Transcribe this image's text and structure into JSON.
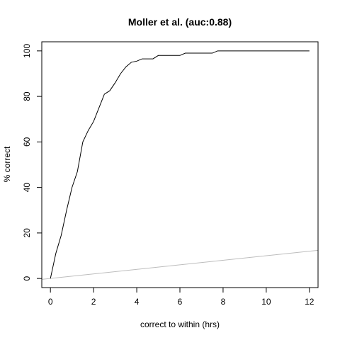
{
  "chart_data": {
    "type": "line",
    "title": "Moller et al. (auc:0.88)",
    "xlabel": "correct to within (hrs)",
    "ylabel": "% correct",
    "xlim": [
      -0.4,
      12.4
    ],
    "ylim": [
      -4,
      104
    ],
    "xticks": [
      0,
      2,
      4,
      6,
      8,
      10,
      12
    ],
    "yticks": [
      0,
      20,
      40,
      60,
      80,
      100
    ],
    "grid": false,
    "legend": "none",
    "series": [
      {
        "x": [
          0.0,
          0.25,
          0.5,
          0.75,
          1.0,
          1.25,
          1.5,
          1.75,
          2.0,
          2.25,
          2.5,
          2.75,
          3.0,
          3.25,
          3.5,
          3.75,
          4.0,
          4.25,
          4.5,
          4.75,
          5.0,
          5.25,
          5.5,
          5.75,
          6.0,
          6.25,
          6.5,
          6.75,
          7.0,
          7.25,
          7.5,
          7.75,
          8.0,
          9.0,
          10.0,
          11.0,
          12.0
        ],
        "y": [
          0,
          11,
          19,
          30,
          40,
          47,
          60,
          65,
          69,
          75,
          81,
          82.5,
          86,
          90,
          93,
          95,
          95.5,
          96.5,
          96.5,
          96.5,
          98,
          98,
          98,
          98,
          98,
          99,
          99,
          99,
          99,
          99,
          99,
          100,
          100,
          100,
          100,
          100,
          100
        ],
        "color": "#000000"
      },
      {
        "x": [
          -0.4,
          12.4
        ],
        "y": [
          -0.4,
          12.4
        ],
        "color": "#bdbdbd",
        "note_scale": "reference diagonal"
      }
    ]
  }
}
